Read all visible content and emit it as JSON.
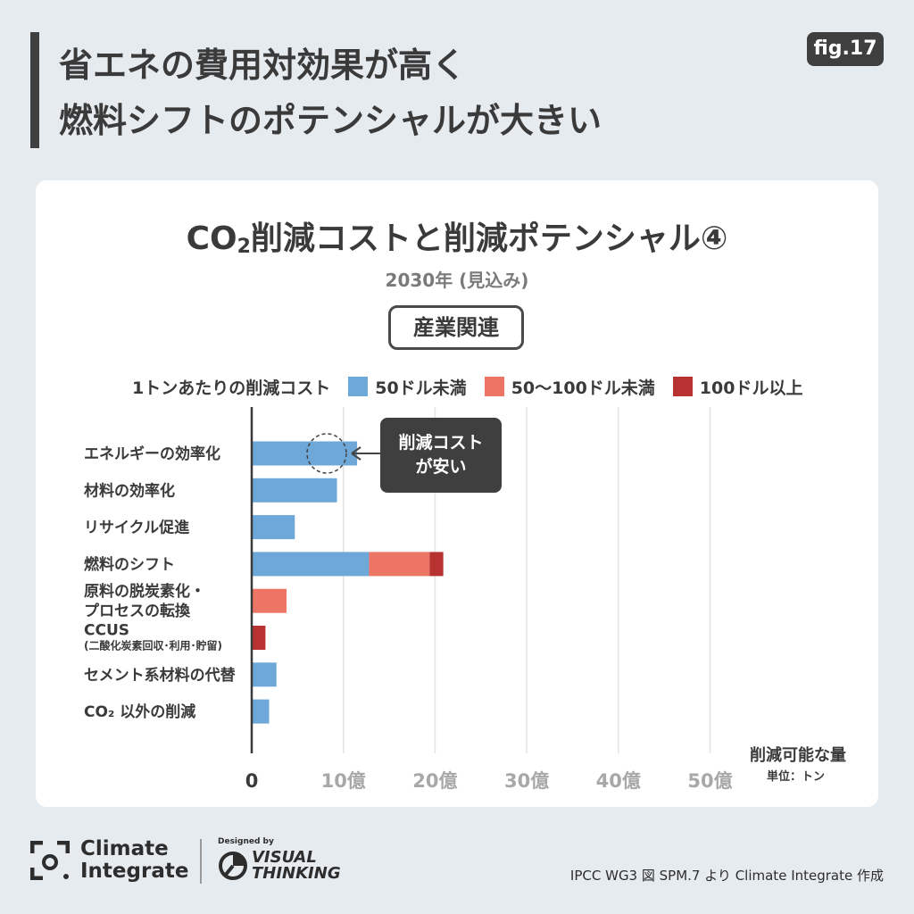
{
  "header": {
    "headline_line1": "省エネの費用対効果が高く",
    "headline_line2": "燃料シフトのポテンシャルが大きい",
    "fig_label": "fig.17"
  },
  "chart_data": {
    "type": "bar",
    "stacked": true,
    "orientation": "horizontal",
    "title_main": "CO",
    "title_sub": "2",
    "title_rest": "削減コストと削減ポテンシャル④",
    "subtitle": "2030年 (見込み)",
    "category_box": "産業関連",
    "legend_title": "1トンあたりの削減コスト",
    "categories": [
      "エネルギーの効率化",
      "材料の効率化",
      "リサイクル促進",
      "燃料のシフト",
      "原料の脱炭素化・\nプロセスの転換",
      "CCUS\n(二酸化炭素回収･利用･貯留)",
      "セメント系材料の代替",
      "CO₂ 以外の削減"
    ],
    "series": [
      {
        "name": "50ドル未満",
        "color": "#6ea8d8",
        "values": [
          11.5,
          9.3,
          4.7,
          12.8,
          0,
          0,
          2.7,
          1.9
        ]
      },
      {
        "name": "50〜100ドル未満",
        "color": "#ec7565",
        "values": [
          0,
          0,
          0,
          6.6,
          3.8,
          0,
          0,
          0
        ]
      },
      {
        "name": "100ドル以上",
        "color": "#b73231",
        "values": [
          0,
          0,
          0,
          1.5,
          0,
          1.5,
          0,
          0
        ]
      }
    ],
    "x_ticks": [
      "0",
      "10億",
      "20億",
      "30億",
      "40億",
      "50億"
    ],
    "x_tick_values": [
      0,
      10,
      20,
      30,
      40,
      50
    ],
    "xlim": [
      0,
      50
    ],
    "xlabel": "削減可能な量",
    "xunit": "単位：トン",
    "grid": true,
    "annotation": {
      "text_line1": "削減コスト",
      "text_line2": "が安い",
      "target_category": "エネルギーの効率化"
    }
  },
  "footer": {
    "ci_line1": "Climate",
    "ci_line2": "Integrate",
    "designed_by": "Designed by",
    "vt_line1": "VISUAL",
    "vt_line2": "THINKING",
    "source": "IPCC WG3 図 SPM.7 より Climate Integrate 作成"
  },
  "colors": {
    "background": "#e6ebef",
    "dark": "#3f3f3f",
    "axis": "#3a3a3a",
    "grid": "#e4e4e4"
  }
}
